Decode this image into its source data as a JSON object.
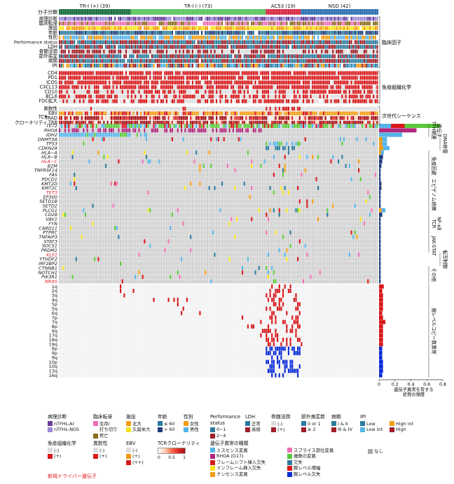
{
  "colors": {
    "grey": "#cfcfcf",
    "red": "#d7191c",
    "blue": "#0a2bd6",
    "tri_pos": "#176c3a",
    "tri_neg": "#57c35c",
    "ac53": "#d7263d",
    "nsd": "#2a6fb0",
    "purple": "#6a3d9a",
    "lavender": "#9d8ad6",
    "pink": "#ee6eb4",
    "orange": "#f39c12",
    "yellow": "#f7e418",
    "cyan": "#56b4e9",
    "teal": "#2b7a9c",
    "green": "#5cc93a",
    "navy": "#1e3d7a",
    "darkred": "#a01f28",
    "magenta": "#b0277e",
    "darkpink": "#c0307f"
  },
  "groups": [
    {
      "label": "TR-I (+) (39)",
      "n": 39,
      "color": "#176c3a"
    },
    {
      "label": "TR-I (-) (73)",
      "n": 73,
      "color": "#57c35c"
    },
    {
      "label": "AC53 (19)",
      "n": 19,
      "color": "#d7263d"
    },
    {
      "label": "NSD (42)",
      "n": 42,
      "color": "#2a6fb0"
    }
  ],
  "group_row_label": "分子分類",
  "clinical_rows": [
    "病理診断",
    "臨床転帰",
    "施設",
    "年齢",
    "性別",
    "Performance status",
    "LDH",
    "骨髄浸潤",
    "節外病変",
    "病期",
    "IPI"
  ],
  "ihc_rows": [
    "CD4",
    "PD1",
    "ICOS",
    "CXCL13",
    "CD10",
    "BCL6",
    "FDC拡大"
  ],
  "ngs_rows": [
    "異数性",
    "EBV",
    "TRAD",
    "TRB"
  ],
  "tcr_label": "TCR\nクローナリティ",
  "genes": [
    {
      "name": "TET2",
      "novel": false,
      "freq": 0.76
    },
    {
      "name": "RHOA",
      "novel": false,
      "freq": 0.47
    },
    {
      "name": "IDH2",
      "novel": false,
      "freq": 0.29
    },
    {
      "name": "DNMT3A",
      "novel": false,
      "freq": 0.1
    },
    {
      "name": "TP53",
      "novel": false,
      "freq": 0.1
    },
    {
      "name": "CDKN2A",
      "novel": false,
      "freq": 0.13
    },
    {
      "name": "HLA−A",
      "novel": false,
      "freq": 0.06
    },
    {
      "name": "HLA−B",
      "novel": false,
      "freq": 0.05
    },
    {
      "name": "HLA−C",
      "novel": true,
      "freq": 0.04
    },
    {
      "name": "B2M",
      "novel": false,
      "freq": 0.03
    },
    {
      "name": "TNFRSF14",
      "novel": false,
      "freq": 0.02
    },
    {
      "name": "FAS",
      "novel": false,
      "freq": 0.02
    },
    {
      "name": "PDCD1",
      "novel": false,
      "freq": 0.02
    },
    {
      "name": "KMT2D",
      "novel": false,
      "freq": 0.03
    },
    {
      "name": "KMT2C",
      "novel": false,
      "freq": 0.03
    },
    {
      "name": "TET3",
      "novel": true,
      "freq": 0.02
    },
    {
      "name": "EP300",
      "novel": false,
      "freq": 0.02
    },
    {
      "name": "SETD1B",
      "novel": false,
      "freq": 0.02
    },
    {
      "name": "SETD2",
      "novel": false,
      "freq": 0.02
    },
    {
      "name": "PLCG1",
      "novel": false,
      "freq": 0.08
    },
    {
      "name": "CD28",
      "novel": false,
      "freq": 0.04
    },
    {
      "name": "VAV1",
      "novel": false,
      "freq": 0.02
    },
    {
      "name": "FYN",
      "novel": false,
      "freq": 0.02
    },
    {
      "name": "CARD11",
      "novel": false,
      "freq": 0.02
    },
    {
      "name": "PTPRC",
      "novel": false,
      "freq": 0.02
    },
    {
      "name": "TNFAIP3",
      "novel": false,
      "freq": 0.02
    },
    {
      "name": "STAT3",
      "novel": false,
      "freq": 0.02
    },
    {
      "name": "SOCS1",
      "novel": false,
      "freq": 0.02
    },
    {
      "name": "PRDM1",
      "novel": false,
      "freq": 0.02
    },
    {
      "name": "KLF2",
      "novel": true,
      "freq": 0.02
    },
    {
      "name": "YTHDF2",
      "novel": false,
      "freq": 0.02
    },
    {
      "name": "IRF2BP2",
      "novel": false,
      "freq": 0.02
    },
    {
      "name": "CTNNB1",
      "novel": false,
      "freq": 0.02
    },
    {
      "name": "NOTCH1",
      "novel": false,
      "freq": 0.02
    },
    {
      "name": "PIK3R1",
      "novel": false,
      "freq": 0.02
    },
    {
      "name": "NRAS",
      "novel": true,
      "freq": 0.02
    }
  ],
  "cnv_rows": [
    {
      "name": "1q",
      "type": "gain",
      "freq": 0.06
    },
    {
      "name": "2q",
      "type": "gain",
      "freq": 0.04
    },
    {
      "name": "3q",
      "type": "gain",
      "freq": 0.05
    },
    {
      "name": "4q",
      "type": "gain",
      "freq": 0.05
    },
    {
      "name": "5p",
      "type": "gain",
      "freq": 0.05
    },
    {
      "name": "5q",
      "type": "gain",
      "freq": 0.05
    },
    {
      "name": "6q",
      "type": "gain",
      "freq": 0.04
    },
    {
      "name": "7p",
      "type": "gain",
      "freq": 0.05
    },
    {
      "name": "7q",
      "type": "gain",
      "freq": 0.08
    },
    {
      "name": "8p",
      "type": "gain",
      "freq": 0.05
    },
    {
      "name": "9q",
      "type": "gain",
      "freq": 0.05
    },
    {
      "name": "17q",
      "type": "gain",
      "freq": 0.05
    },
    {
      "name": "18q",
      "type": "gain",
      "freq": 0.05
    },
    {
      "name": "19q",
      "type": "gain",
      "freq": 0.05
    },
    {
      "name": "6p",
      "type": "loss",
      "freq": 0.04
    },
    {
      "name": "9p",
      "type": "loss",
      "freq": 0.04
    },
    {
      "name": "9q",
      "type": "loss",
      "freq": 0.04
    },
    {
      "name": "10p",
      "type": "loss",
      "freq": 0.05
    },
    {
      "name": "10q",
      "type": "loss",
      "freq": 0.05
    },
    {
      "name": "13q",
      "type": "loss",
      "freq": 0.05
    },
    {
      "name": "16q",
      "type": "loss",
      "freq": 0.04
    }
  ],
  "section_labels": {
    "clinical": "臨床因子",
    "ihc": "免疫組織化学",
    "ngs": "次世代シーケンス",
    "tfh": "TFH関連\n遺伝子",
    "dna": "DNA修復",
    "immune": "免疫回避",
    "epi": "エピゲノム修飾",
    "tcr": "TCR\nNF-κB",
    "jak": "JAK-STAT",
    "tx": "転写制御",
    "other": "その他",
    "cnv": "腕レベルコピー数異常"
  },
  "freq_axis": {
    "ticks": [
      "0",
      "0.2",
      "0.4",
      "0.6",
      "0.8"
    ],
    "max": 0.8,
    "label": "遺伝子異常を有する\n症例の頻度"
  },
  "legend": {
    "pathology": {
      "title": "病理診断",
      "items": [
        {
          "label": "nTFHL-AI",
          "color": "#6a3d9a"
        },
        {
          "label": "nTFHL-NOS",
          "color": "#9d8ad6"
        }
      ]
    },
    "outcome": {
      "title": "臨床転帰",
      "items": [
        {
          "label": "生存/\n打ち切り",
          "color": "#ee6eb4"
        },
        {
          "label": "死亡",
          "color": "#8a6d1a"
        }
      ]
    },
    "facility": {
      "title": "施設",
      "items": [
        {
          "label": "北大",
          "color": "#f39c12"
        },
        {
          "label": "久留米大",
          "color": "#f7e418"
        }
      ]
    },
    "age": {
      "title": "年齢",
      "items": [
        {
          "label": "≤ 60",
          "color": "#2b7a9c"
        },
        {
          "label": "> 60",
          "color": "#1e3d7a"
        }
      ]
    },
    "sex": {
      "title": "性別",
      "items": [
        {
          "label": "女性",
          "color": "#f39c12"
        },
        {
          "label": "男性",
          "color": "#56b4e9"
        }
      ]
    },
    "ps": {
      "title": "Performance\nstatus",
      "items": [
        {
          "label": "0−1",
          "color": "#2b7a9c"
        },
        {
          "label": "2−4",
          "color": "#a01f28"
        }
      ]
    },
    "ldh": {
      "title": "LDH",
      "items": [
        {
          "label": "正常",
          "color": "#2b7a9c"
        },
        {
          "label": "高値",
          "color": "#a01f28"
        }
      ]
    },
    "bm": {
      "title": "骨髄浸潤",
      "items": [
        {
          "label": "(-)",
          "color": "#dddddd"
        },
        {
          "label": "(+)",
          "color": "#a01f28"
        }
      ]
    },
    "extranodal": {
      "title": "節外病変数",
      "items": [
        {
          "label": "0 or 1",
          "color": "#2b7a9c"
        },
        {
          "label": "≥ 2",
          "color": "#a01f28"
        }
      ]
    },
    "stage": {
      "title": "病期",
      "items": [
        {
          "label": "I & II",
          "color": "#2b7a9c"
        },
        {
          "label": "III & IV",
          "color": "#a01f28"
        }
      ]
    },
    "ipi": {
      "title": "IPI",
      "items": [
        {
          "label": "Low",
          "color": "#2b7a9c"
        },
        {
          "label": "High int",
          "color": "#f39c12"
        },
        {
          "label": "Low int",
          "color": "#56b4e9"
        },
        {
          "label": "High",
          "color": "#a01f28"
        }
      ]
    },
    "ihc": {
      "title": "免疫組織化学",
      "items": [
        {
          "label": "(-)",
          "color": "#dddddd"
        },
        {
          "label": "(+)",
          "color": "#d7191c"
        }
      ]
    },
    "aneuploidy": {
      "title": "異数性",
      "items": [
        {
          "label": "(-)",
          "color": "#dddddd"
        },
        {
          "label": "(+)",
          "color": "#d7191c"
        }
      ]
    },
    "ebv": {
      "title": "EBV",
      "items": [
        {
          "label": "(-)",
          "color": "#dddddd"
        },
        {
          "label": "(+)",
          "color": "#f39c12"
        },
        {
          "label": "(++)",
          "color": "#d7191c"
        }
      ]
    },
    "tcr": {
      "title": "TCRクローナリティ",
      "ticks": [
        "0",
        "0.5",
        "1"
      ]
    },
    "mut": {
      "title": "遺伝子異常の種類",
      "items": [
        {
          "label": "ミスセンス変異",
          "color": "#56b4e9"
        },
        {
          "label": "RHOA (G17)",
          "color": "#b0277e"
        },
        {
          "label": "フレームシフト挿入欠失",
          "color": "#d7191c"
        },
        {
          "label": "インフレーム挿入欠失",
          "color": "#f7e418"
        },
        {
          "label": "ナンセンス変異",
          "color": "#f39c12"
        },
        {
          "label": "スプライス部位変異",
          "color": "#ee6eb4"
        },
        {
          "label": "複数の変異",
          "color": "#5cc93a"
        },
        {
          "label": "欠失",
          "color": "#2b7a9c"
        },
        {
          "label": "腕レベル増幅",
          "color": "#d7191c"
        },
        {
          "label": "腕レベル欠失",
          "color": "#0a2bd6"
        }
      ]
    },
    "none": {
      "label": "なし",
      "color": "#a8a8a8"
    }
  },
  "novel_note": "新規ドライバー遺伝子"
}
